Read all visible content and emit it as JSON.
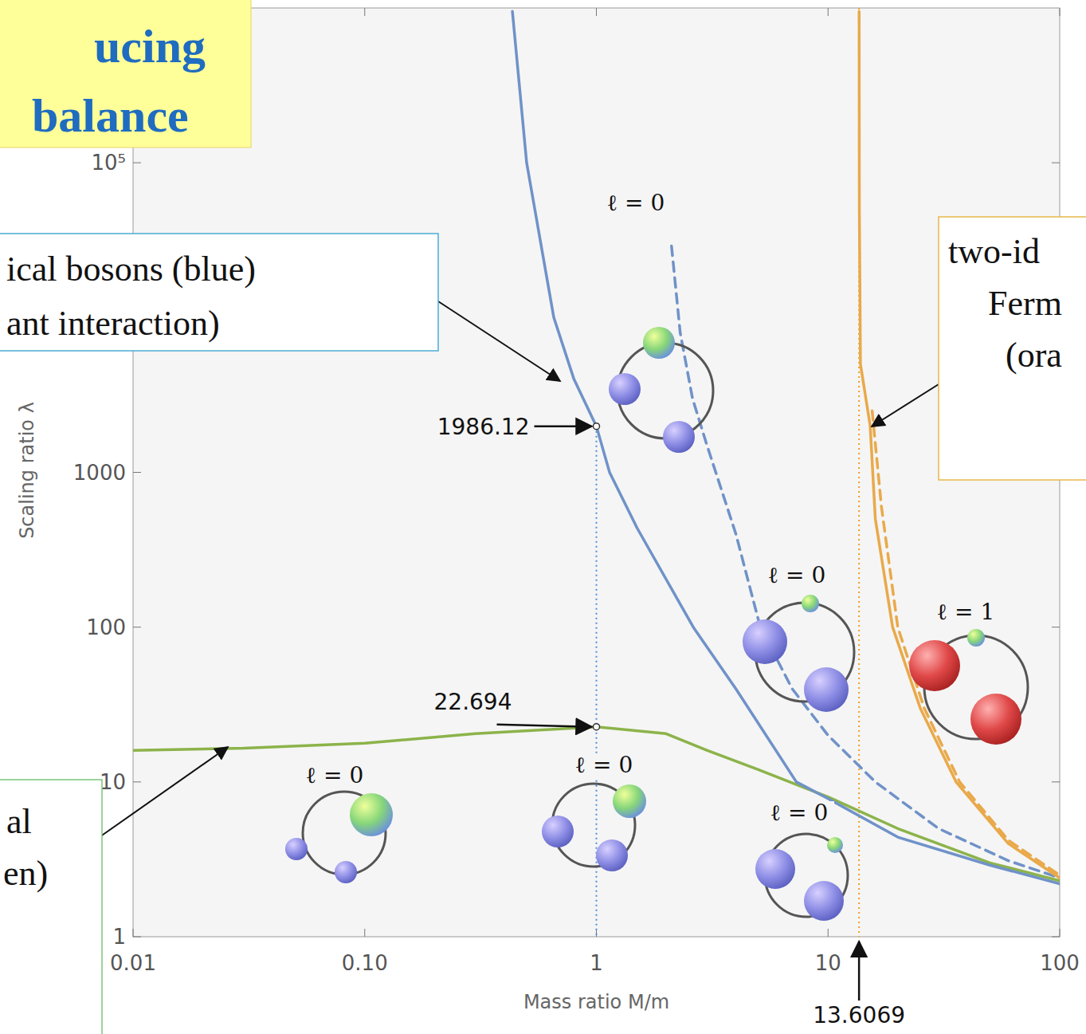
{
  "chart_data": {
    "type": "line",
    "title": [
      "ucing",
      "balance"
    ],
    "x_label": "Mass ratio M/m",
    "y_label": "Scaling ratio λ",
    "log": true,
    "grid": false,
    "xlim": [
      0.01,
      100
    ],
    "ylim": [
      1,
      1000000
    ],
    "xticks": [
      0.01,
      {
        "value": 0.1,
        "label": "0.10"
      },
      1,
      10,
      100
    ],
    "yticks": [
      1,
      10,
      100,
      1000,
      {
        "value": 100000,
        "label": "10⁵"
      }
    ],
    "series": [
      {
        "color": "#8cb34a",
        "line_style": "solid",
        "x": [
          0.01,
          0.03,
          0.1,
          0.3,
          1,
          2,
          3,
          5,
          10,
          20,
          50,
          100
        ],
        "values": [
          16.0,
          16.5,
          17.8,
          20.5,
          22.694,
          20.5,
          16,
          12,
          8.0,
          5.0,
          3.0,
          2.3
        ]
      },
      {
        "color": "#6f92c8",
        "line_style": "solid",
        "x": [
          0.434,
          0.5,
          0.655,
          0.8,
          1,
          1.14,
          1.5,
          2.62,
          4,
          7.3,
          10,
          20,
          50,
          100
        ],
        "values": [
          950000,
          100000,
          10000,
          4000,
          1986.12,
          1000,
          436,
          100,
          40,
          10,
          7.8,
          4.4,
          2.9,
          2.2
        ]
      },
      {
        "color": "#6f92c8",
        "line_style": "dashed",
        "x": [
          2.11,
          2.3,
          2.6,
          3,
          4,
          5.1,
          7,
          10,
          16,
          30,
          60,
          100
        ],
        "values": [
          29000,
          8000,
          3000,
          1500,
          400,
          100,
          40,
          20,
          10,
          5,
          3.1,
          2.4
        ]
      },
      {
        "color": "#e9a94a",
        "line_style": "solid",
        "x": [
          13.62,
          13.65,
          13.8,
          15.2,
          16,
          19,
          25,
          35.7,
          60,
          100
        ],
        "values": [
          950000,
          50000,
          5000,
          2000,
          500,
          100,
          30,
          10,
          4,
          2.4
        ]
      },
      {
        "color": "#e9a94a",
        "line_style": "dashed",
        "x": [
          15.5,
          17,
          20,
          26,
          37,
          60,
          100
        ],
        "values": [
          2500,
          600,
          100,
          30,
          10,
          4.2,
          2.5
        ]
      }
    ],
    "markers": [
      {
        "x": 1,
        "y": 1986.12
      },
      {
        "x": 1,
        "y": 22.694
      }
    ],
    "threshold": {
      "x": 13.6069
    },
    "annotations": [
      "ℓ = 0",
      "ℓ = 0",
      "ℓ = 1",
      "ℓ = 0",
      "ℓ = 0",
      "ℓ = 0"
    ],
    "callouts": [
      {
        "lines": [
          "ical bosons (blue)",
          "ant interaction)"
        ]
      },
      {
        "lines": [
          "two-id",
          "Ferm",
          "(ora"
        ]
      },
      {
        "lines": [
          "al",
          "en)"
        ]
      }
    ]
  }
}
